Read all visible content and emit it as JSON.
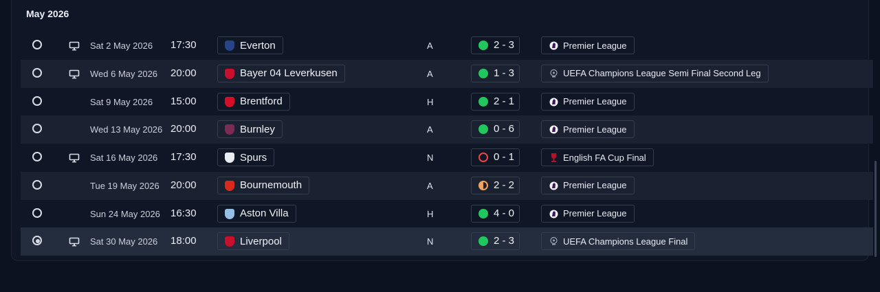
{
  "month_header": "May 2026",
  "colors": {
    "win": "#22c55e",
    "loss": "#ef4444",
    "draw": "#f5a35b",
    "row_alt": "#1a2232",
    "background": "#0b1220"
  },
  "fixtures": [
    {
      "selected": false,
      "televised": true,
      "date": "Sat 2 May 2026",
      "time": "17:30",
      "opponent": "Everton",
      "crest_color": "#274488",
      "venue": "A",
      "outcome": "win",
      "score": "2 - 3",
      "competition": "Premier League",
      "competition_icon": "premier-league-icon"
    },
    {
      "selected": false,
      "televised": true,
      "date": "Wed 6 May 2026",
      "time": "20:00",
      "opponent": "Bayer 04 Leverkusen",
      "crest_color": "#c8102e",
      "venue": "A",
      "outcome": "win",
      "score": "1 - 3",
      "competition": "UEFA Champions League Semi Final Second Leg",
      "competition_icon": "champions-league-icon"
    },
    {
      "selected": false,
      "televised": false,
      "date": "Sat 9 May 2026",
      "time": "15:00",
      "opponent": "Brentford",
      "crest_color": "#d20f26",
      "venue": "H",
      "outcome": "win",
      "score": "2 - 1",
      "competition": "Premier League",
      "competition_icon": "premier-league-icon"
    },
    {
      "selected": false,
      "televised": false,
      "date": "Wed 13 May 2026",
      "time": "20:00",
      "opponent": "Burnley",
      "crest_color": "#7b2c55",
      "venue": "A",
      "outcome": "win",
      "score": "0 - 6",
      "competition": "Premier League",
      "competition_icon": "premier-league-icon"
    },
    {
      "selected": false,
      "televised": true,
      "date": "Sat 16 May 2026",
      "time": "17:30",
      "opponent": "Spurs",
      "crest_color": "#e8ecf3",
      "venue": "N",
      "outcome": "loss",
      "score": "0 - 1",
      "competition": "English FA Cup Final",
      "competition_icon": "fa-cup-icon"
    },
    {
      "selected": false,
      "televised": false,
      "date": "Tue 19 May 2026",
      "time": "20:00",
      "opponent": "Bournemouth",
      "crest_color": "#da291c",
      "venue": "A",
      "outcome": "draw",
      "score": "2 - 2",
      "competition": "Premier League",
      "competition_icon": "premier-league-icon"
    },
    {
      "selected": false,
      "televised": false,
      "date": "Sun 24 May 2026",
      "time": "16:30",
      "opponent": "Aston Villa",
      "crest_color": "#95bfe5",
      "venue": "H",
      "outcome": "win",
      "score": "4 - 0",
      "competition": "Premier League",
      "competition_icon": "premier-league-icon"
    },
    {
      "selected": true,
      "televised": true,
      "date": "Sat 30 May 2026",
      "time": "18:00",
      "opponent": "Liverpool",
      "crest_color": "#c8102e",
      "venue": "N",
      "outcome": "win",
      "score": "2 - 3",
      "competition": "UEFA Champions League Final",
      "competition_icon": "champions-league-icon"
    }
  ]
}
